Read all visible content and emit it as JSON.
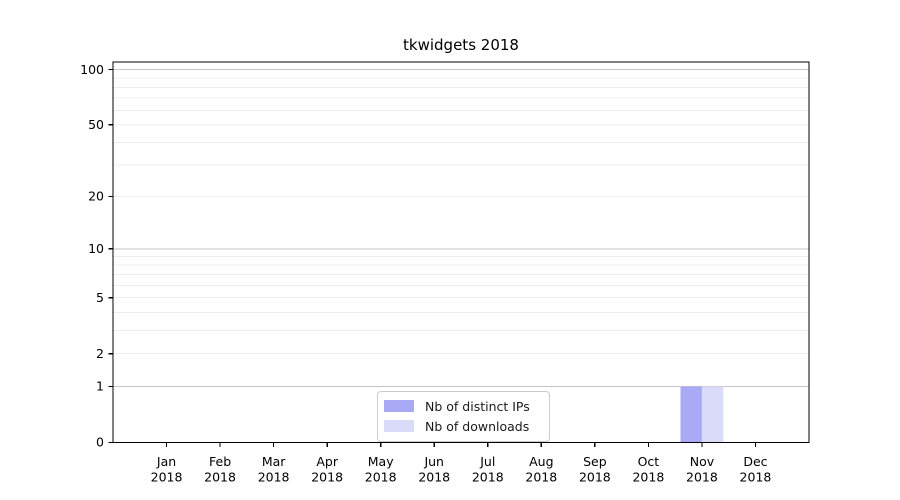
{
  "chart_data": {
    "type": "bar",
    "title": "tkwidgets 2018",
    "categories": [
      "Jan 2018",
      "Feb 2018",
      "Mar 2018",
      "Apr 2018",
      "May 2018",
      "Jun 2018",
      "Jul 2018",
      "Aug 2018",
      "Sep 2018",
      "Oct 2018",
      "Nov 2018",
      "Dec 2018"
    ],
    "series": [
      {
        "name": "Nb of distinct IPs",
        "color": "#a9a9f5",
        "values": [
          0,
          0,
          0,
          0,
          0,
          0,
          0,
          0,
          0,
          0,
          1,
          0
        ]
      },
      {
        "name": "Nb of downloads",
        "color": "#dadaf9",
        "values": [
          0,
          0,
          0,
          0,
          0,
          0,
          0,
          0,
          0,
          0,
          1,
          0
        ]
      }
    ],
    "yscale": "log10(1+v)",
    "yticks": [
      0,
      1,
      2,
      5,
      10,
      20,
      50,
      100
    ],
    "ylim": [
      0,
      110
    ],
    "grid": "horizontal",
    "legend_position": "bottom-center",
    "colors": {
      "axis": "#000000",
      "grid_minor": "#ededed",
      "grid_major": "#c6c6c6",
      "legend_border": "#cccccc"
    }
  }
}
